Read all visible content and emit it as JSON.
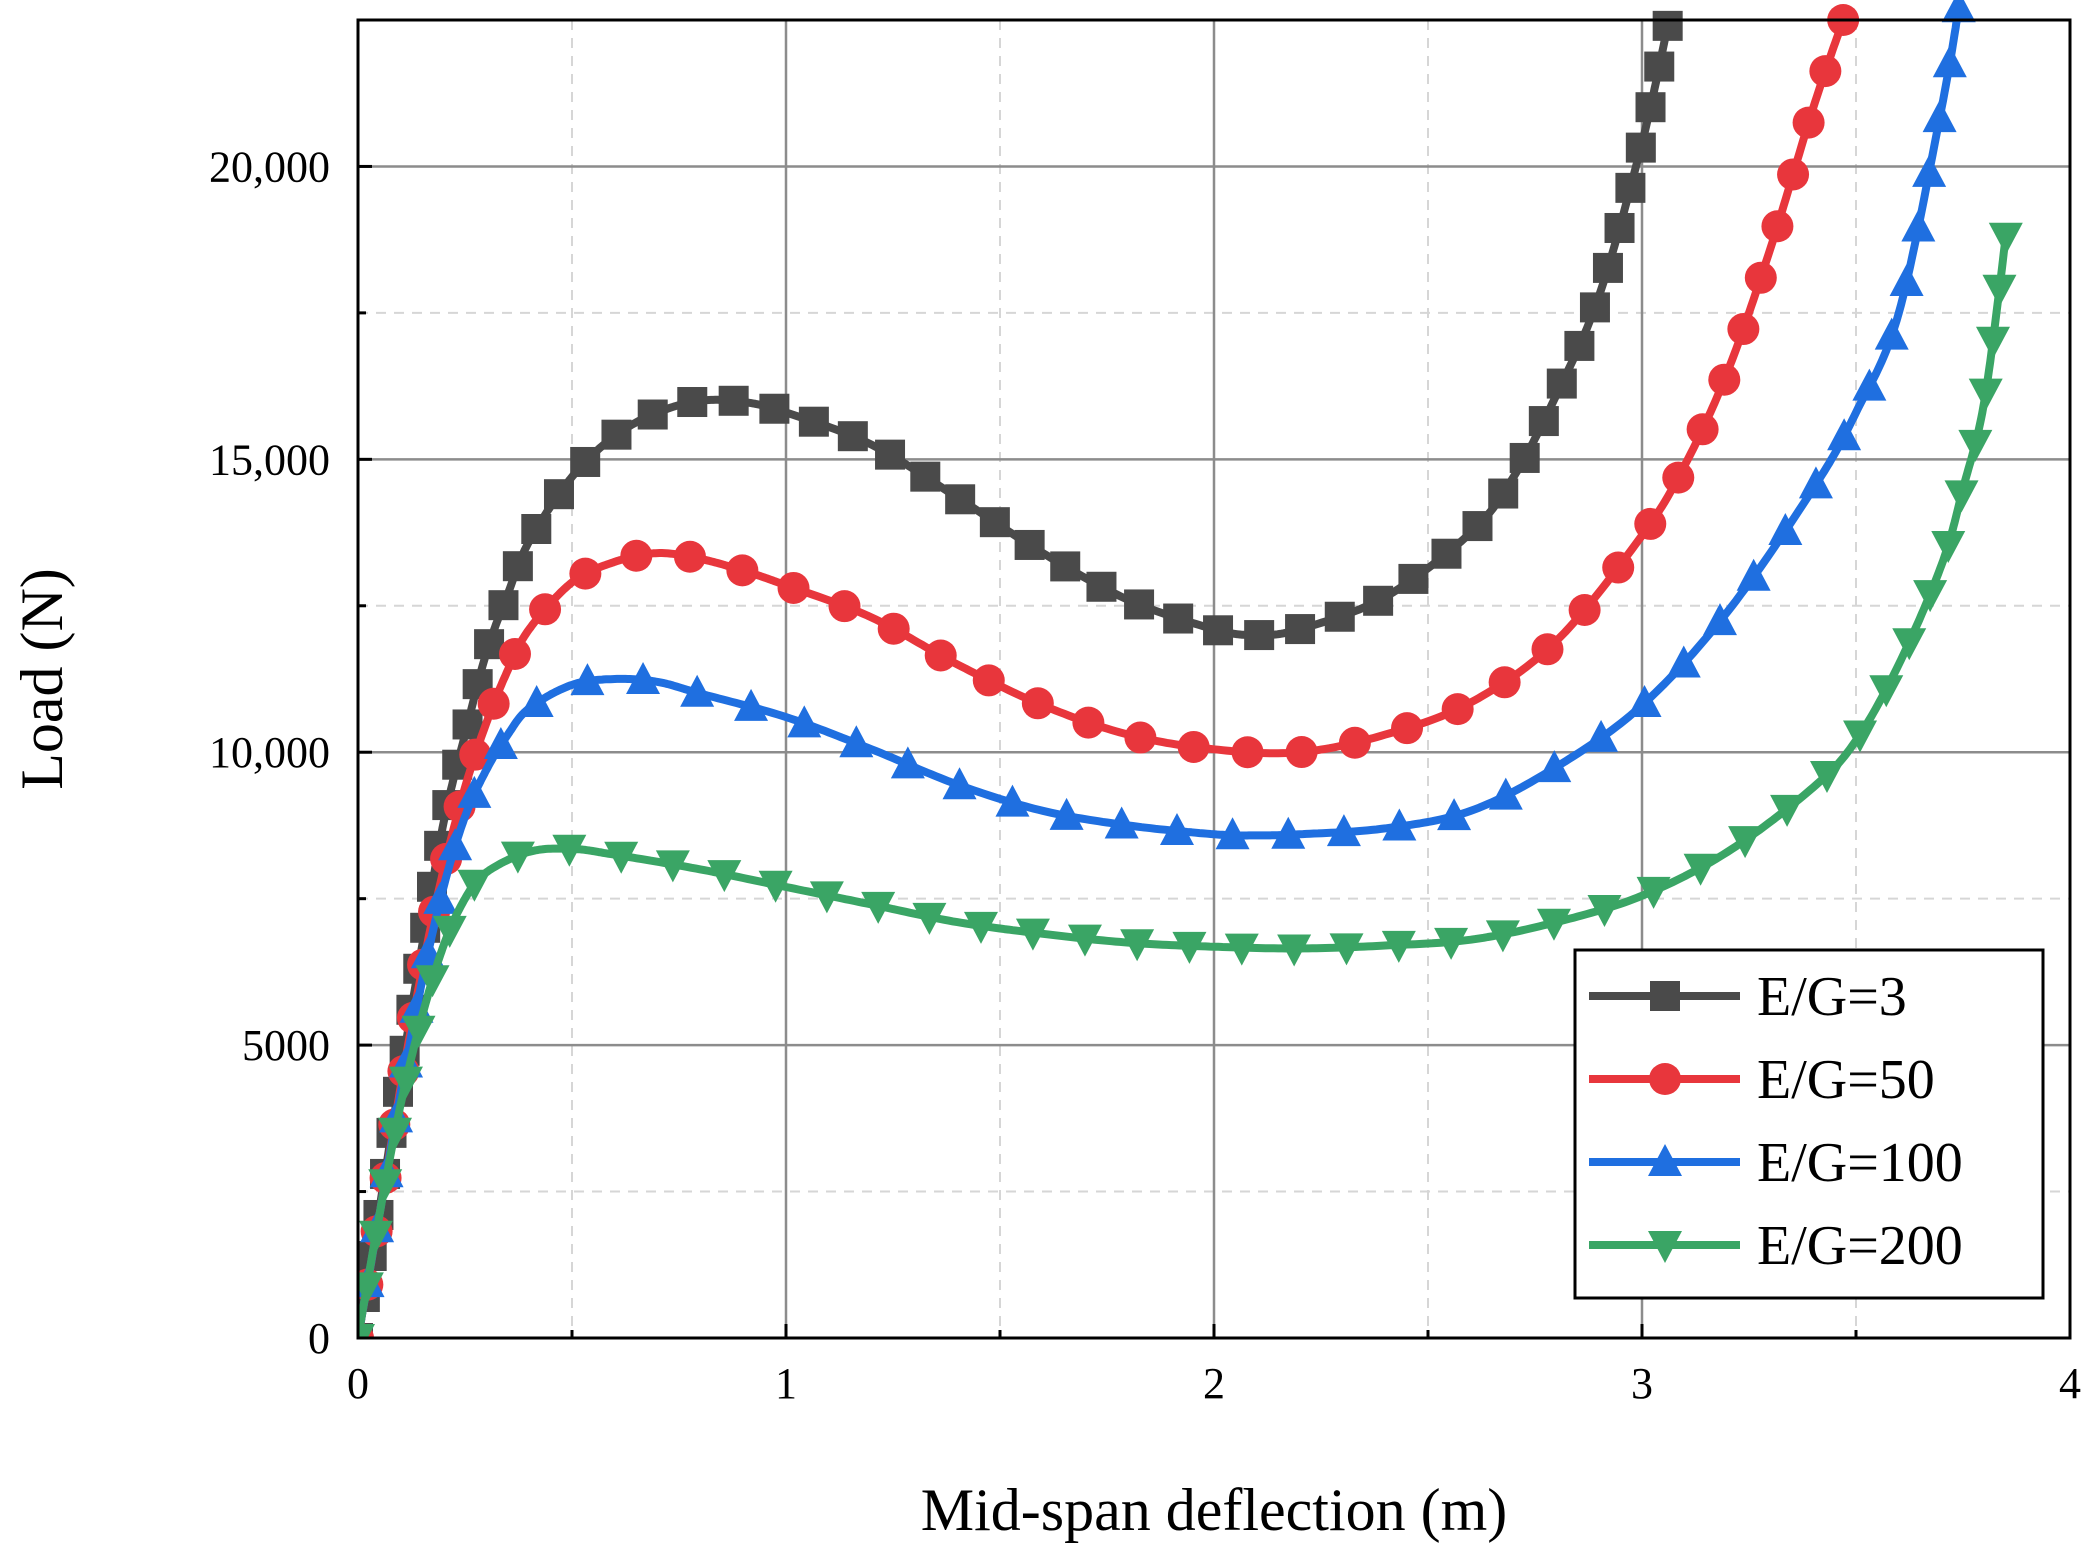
{
  "chart_data": {
    "type": "line",
    "title": "",
    "xlabel": "Mid-span deflection (m)",
    "ylabel": "Load (N)",
    "xlim": [
      0,
      4
    ],
    "ylim": [
      0,
      22500
    ],
    "x_ticks": [
      0,
      1,
      2,
      3,
      4
    ],
    "x_tick_labels": [
      "0",
      "1",
      "2",
      "3",
      "4"
    ],
    "y_ticks": [
      0,
      5000,
      10000,
      15000,
      20000
    ],
    "y_tick_labels": [
      "0",
      "5000",
      "10,000",
      "15,000",
      "20,000"
    ],
    "x_minor": [
      0.5,
      1.5,
      2.5,
      3.5
    ],
    "y_minor": [
      2500,
      7500,
      12500,
      17500
    ],
    "grid": true,
    "legend_position": "bottom-right",
    "series": [
      {
        "name": "E/G=3",
        "color": "#4a4a4a",
        "marker": "square",
        "anchors": [
          [
            0,
            0
          ],
          [
            0.05,
            2200
          ],
          [
            0.1,
            4500
          ],
          [
            0.15,
            6700
          ],
          [
            0.2,
            8800
          ],
          [
            0.25,
            10300
          ],
          [
            0.3,
            11700
          ],
          [
            0.35,
            12700
          ],
          [
            0.4,
            13600
          ],
          [
            0.5,
            14700
          ],
          [
            0.6,
            15400
          ],
          [
            0.7,
            15800
          ],
          [
            0.8,
            16000
          ],
          [
            0.9,
            15980
          ],
          [
            1.0,
            15800
          ],
          [
            1.2,
            15250
          ],
          [
            1.4,
            14350
          ],
          [
            1.6,
            13400
          ],
          [
            1.8,
            12600
          ],
          [
            2.0,
            12100
          ],
          [
            2.1,
            12000
          ],
          [
            2.2,
            12100
          ],
          [
            2.4,
            12650
          ],
          [
            2.6,
            13750
          ],
          [
            2.7,
            14700
          ],
          [
            2.8,
            16100
          ],
          [
            2.9,
            17800
          ],
          [
            3.0,
            20400
          ],
          [
            3.06,
            22400
          ]
        ],
        "n_points": 60
      },
      {
        "name": "E/G=50",
        "color": "#e8363c",
        "marker": "circle",
        "anchors": [
          [
            0,
            0
          ],
          [
            0.05,
            2100
          ],
          [
            0.1,
            4300
          ],
          [
            0.15,
            6300
          ],
          [
            0.2,
            8000
          ],
          [
            0.25,
            9400
          ],
          [
            0.3,
            10500
          ],
          [
            0.35,
            11400
          ],
          [
            0.4,
            12100
          ],
          [
            0.5,
            12900
          ],
          [
            0.6,
            13250
          ],
          [
            0.7,
            13400
          ],
          [
            0.8,
            13300
          ],
          [
            0.9,
            13100
          ],
          [
            1.0,
            12850
          ],
          [
            1.2,
            12300
          ],
          [
            1.4,
            11500
          ],
          [
            1.6,
            10800
          ],
          [
            1.8,
            10300
          ],
          [
            2.0,
            10050
          ],
          [
            2.2,
            10000
          ],
          [
            2.4,
            10300
          ],
          [
            2.6,
            10850
          ],
          [
            2.8,
            11900
          ],
          [
            3.0,
            13700
          ],
          [
            3.1,
            14900
          ],
          [
            3.2,
            16500
          ],
          [
            3.3,
            18600
          ],
          [
            3.4,
            21000
          ],
          [
            3.47,
            22500
          ]
        ],
        "n_points": 48
      },
      {
        "name": "E/G=100",
        "color": "#1f6fe0",
        "marker": "triangle-up",
        "anchors": [
          [
            0,
            0
          ],
          [
            0.05,
            2100
          ],
          [
            0.1,
            4200
          ],
          [
            0.15,
            6100
          ],
          [
            0.2,
            7700
          ],
          [
            0.25,
            8900
          ],
          [
            0.3,
            9700
          ],
          [
            0.35,
            10300
          ],
          [
            0.4,
            10750
          ],
          [
            0.5,
            11150
          ],
          [
            0.6,
            11250
          ],
          [
            0.7,
            11200
          ],
          [
            0.8,
            11000
          ],
          [
            1.0,
            10600
          ],
          [
            1.2,
            10050
          ],
          [
            1.4,
            9450
          ],
          [
            1.6,
            9000
          ],
          [
            1.8,
            8750
          ],
          [
            2.0,
            8600
          ],
          [
            2.1,
            8580
          ],
          [
            2.2,
            8600
          ],
          [
            2.4,
            8700
          ],
          [
            2.6,
            9000
          ],
          [
            2.8,
            9750
          ],
          [
            3.0,
            10800
          ],
          [
            3.2,
            12400
          ],
          [
            3.4,
            14500
          ],
          [
            3.5,
            15800
          ],
          [
            3.6,
            17500
          ],
          [
            3.7,
            21000
          ],
          [
            3.74,
            22700
          ]
        ],
        "n_points": 48
      },
      {
        "name": "E/G=200",
        "color": "#3aa565",
        "marker": "triangle-down",
        "anchors": [
          [
            0,
            0
          ],
          [
            0.05,
            2100
          ],
          [
            0.1,
            4000
          ],
          [
            0.15,
            5500
          ],
          [
            0.2,
            6700
          ],
          [
            0.25,
            7500
          ],
          [
            0.3,
            7950
          ],
          [
            0.4,
            8300
          ],
          [
            0.5,
            8350
          ],
          [
            0.6,
            8250
          ],
          [
            0.8,
            8000
          ],
          [
            1.0,
            7700
          ],
          [
            1.2,
            7400
          ],
          [
            1.4,
            7100
          ],
          [
            1.6,
            6900
          ],
          [
            1.8,
            6750
          ],
          [
            2.0,
            6680
          ],
          [
            2.2,
            6650
          ],
          [
            2.4,
            6700
          ],
          [
            2.6,
            6800
          ],
          [
            2.8,
            7100
          ],
          [
            3.0,
            7550
          ],
          [
            3.2,
            8300
          ],
          [
            3.4,
            9400
          ],
          [
            3.5,
            10200
          ],
          [
            3.6,
            11500
          ],
          [
            3.7,
            13200
          ],
          [
            3.75,
            14500
          ],
          [
            3.8,
            16000
          ],
          [
            3.85,
            18800
          ]
        ],
        "n_points": 48
      }
    ]
  }
}
